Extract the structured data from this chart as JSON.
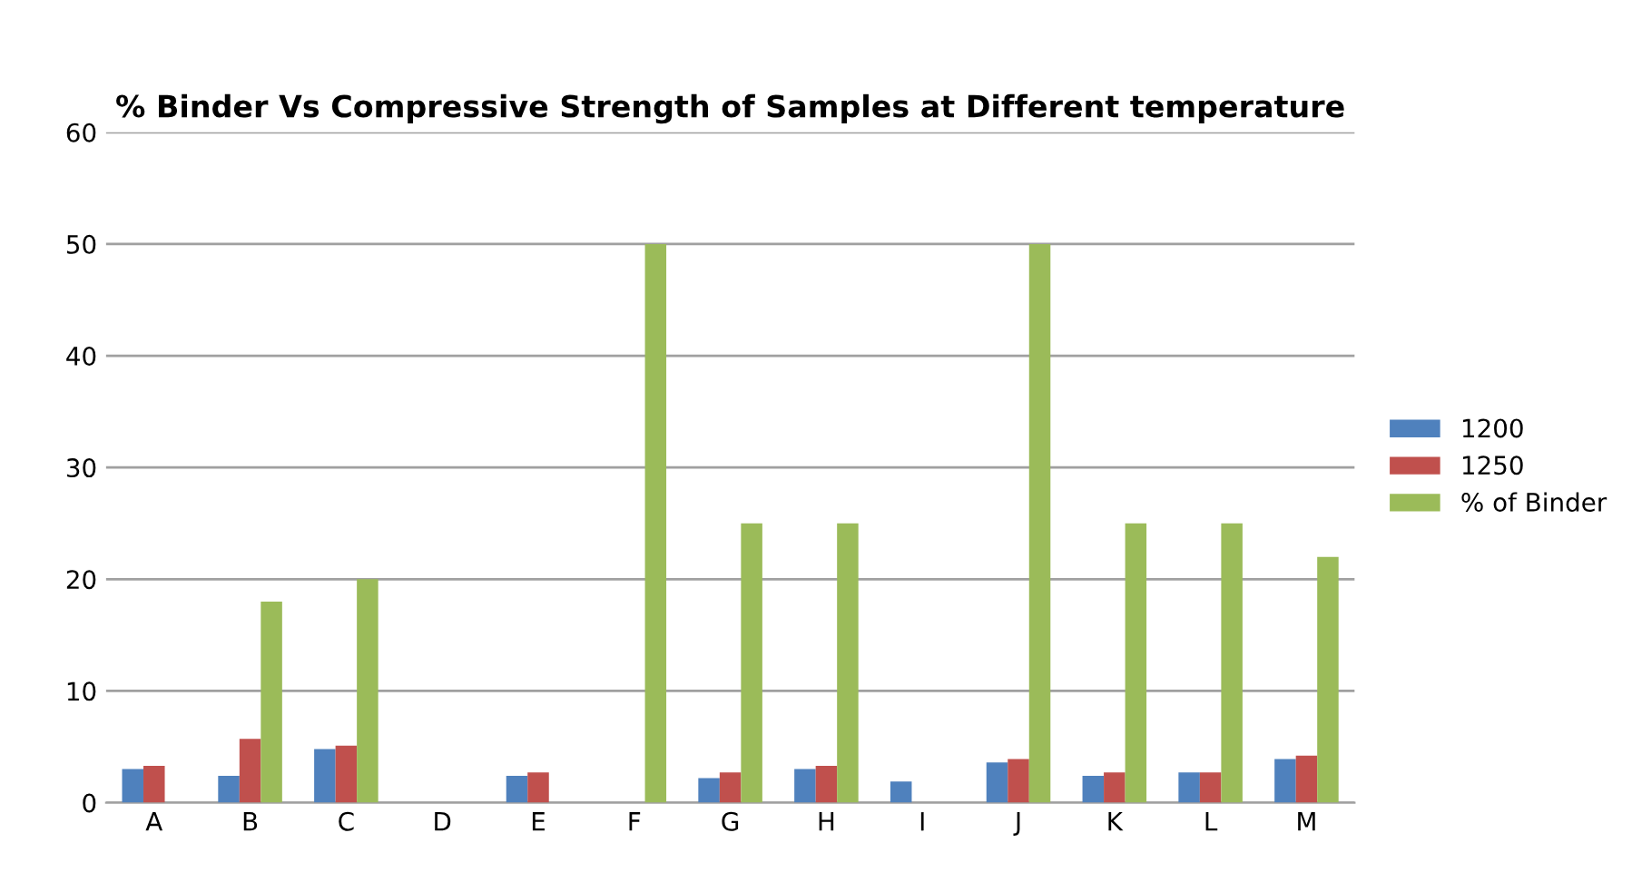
{
  "chart_data": {
    "type": "bar",
    "title": "% Binder Vs Compressive Strength of Samples at Different temperature",
    "categories": [
      "A",
      "B",
      "C",
      "D",
      "E",
      "F",
      "G",
      "H",
      "I",
      "J",
      "K",
      "L",
      "M"
    ],
    "series": [
      {
        "name": "1200",
        "color": "#4f81bd",
        "values": [
          3.0,
          2.4,
          4.8,
          null,
          2.4,
          null,
          2.2,
          3.0,
          1.9,
          3.6,
          2.4,
          2.7,
          3.9
        ]
      },
      {
        "name": "1250",
        "color": "#c0504d",
        "values": [
          3.3,
          5.7,
          5.1,
          null,
          2.7,
          null,
          2.7,
          3.3,
          null,
          3.9,
          2.7,
          2.7,
          4.2
        ]
      },
      {
        "name": "% of Binder",
        "color": "#9bbb59",
        "values": [
          null,
          18,
          20,
          null,
          null,
          50,
          25,
          25,
          null,
          50,
          25,
          25,
          22
        ]
      }
    ],
    "ylim": [
      0,
      60
    ],
    "yticks": [
      0,
      10,
      20,
      30,
      40,
      50,
      60
    ],
    "grid": "y",
    "legend": "right"
  }
}
